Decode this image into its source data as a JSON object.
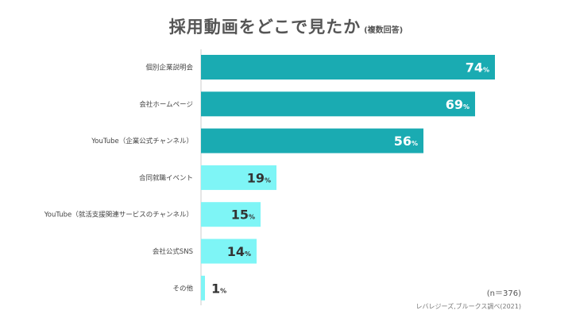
{
  "title": "採用動画をどこで見たか",
  "subtitle": "(複数回答)",
  "sample_note": "(n＝376)",
  "source": "レバレジーズ,ブルークス調べ(2021)",
  "colors": {
    "primary": "#1aabb2",
    "secondary": "#7ef5f6",
    "label": "#444444",
    "value_light": "#ffffff",
    "value_dark": "#333333"
  },
  "chart_data": {
    "type": "bar",
    "orientation": "horizontal",
    "unit": "%",
    "categories": [
      "個別企業説明会",
      "会社ホームページ",
      "YouTube（企業公式チャンネル）",
      "合同就職イベント",
      "YouTube（就活支援関連サービスのチャンネル）",
      "会社公式SNS",
      "その他"
    ],
    "values": [
      74,
      69,
      56,
      19,
      15,
      14,
      1
    ],
    "highlight": [
      true,
      true,
      true,
      false,
      false,
      false,
      false
    ],
    "xlim": [
      0,
      100
    ],
    "grid": false,
    "legend": "none"
  }
}
